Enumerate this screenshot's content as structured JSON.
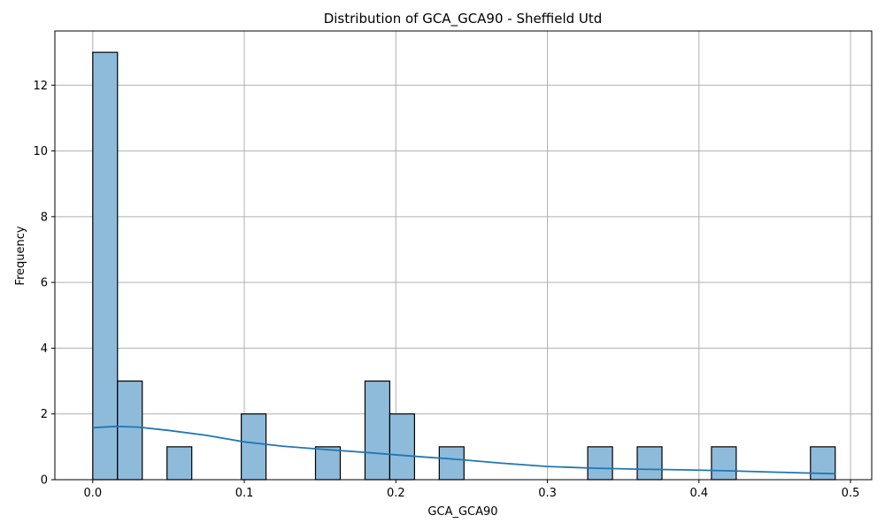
{
  "chart_data": {
    "type": "bar",
    "title": "Distribution of GCA_GCA90 - Sheffield Utd",
    "xlabel": "GCA_GCA90",
    "ylabel": "Frequency",
    "xlim": [
      -0.025,
      0.514
    ],
    "ylim": [
      0,
      13.65
    ],
    "grid": true,
    "x_ticks": [
      "0.0",
      "0.1",
      "0.2",
      "0.3",
      "0.4",
      "0.5"
    ],
    "y_ticks": [
      "0",
      "2",
      "4",
      "6",
      "8",
      "10",
      "12"
    ],
    "bin_width": 0.01633,
    "bins": [
      {
        "x0": 0.0,
        "count": 13
      },
      {
        "x0": 0.01633,
        "count": 3
      },
      {
        "x0": 0.049,
        "count": 1
      },
      {
        "x0": 0.09799,
        "count": 2
      },
      {
        "x0": 0.14698,
        "count": 1
      },
      {
        "x0": 0.17965,
        "count": 3
      },
      {
        "x0": 0.19598,
        "count": 2
      },
      {
        "x0": 0.22864,
        "count": 1
      },
      {
        "x0": 0.32661,
        "count": 1
      },
      {
        "x0": 0.35927,
        "count": 1
      },
      {
        "x0": 0.40826,
        "count": 1
      },
      {
        "x0": 0.47358,
        "count": 1
      }
    ],
    "kde": {
      "x": [
        0.0,
        0.015,
        0.03,
        0.05,
        0.075,
        0.1,
        0.125,
        0.15,
        0.18,
        0.21,
        0.24,
        0.27,
        0.3,
        0.33,
        0.36,
        0.39,
        0.42,
        0.45,
        0.49
      ],
      "y": [
        1.58,
        1.62,
        1.6,
        1.5,
        1.35,
        1.15,
        1.02,
        0.93,
        0.83,
        0.72,
        0.62,
        0.5,
        0.4,
        0.35,
        0.32,
        0.3,
        0.27,
        0.23,
        0.18
      ]
    }
  }
}
